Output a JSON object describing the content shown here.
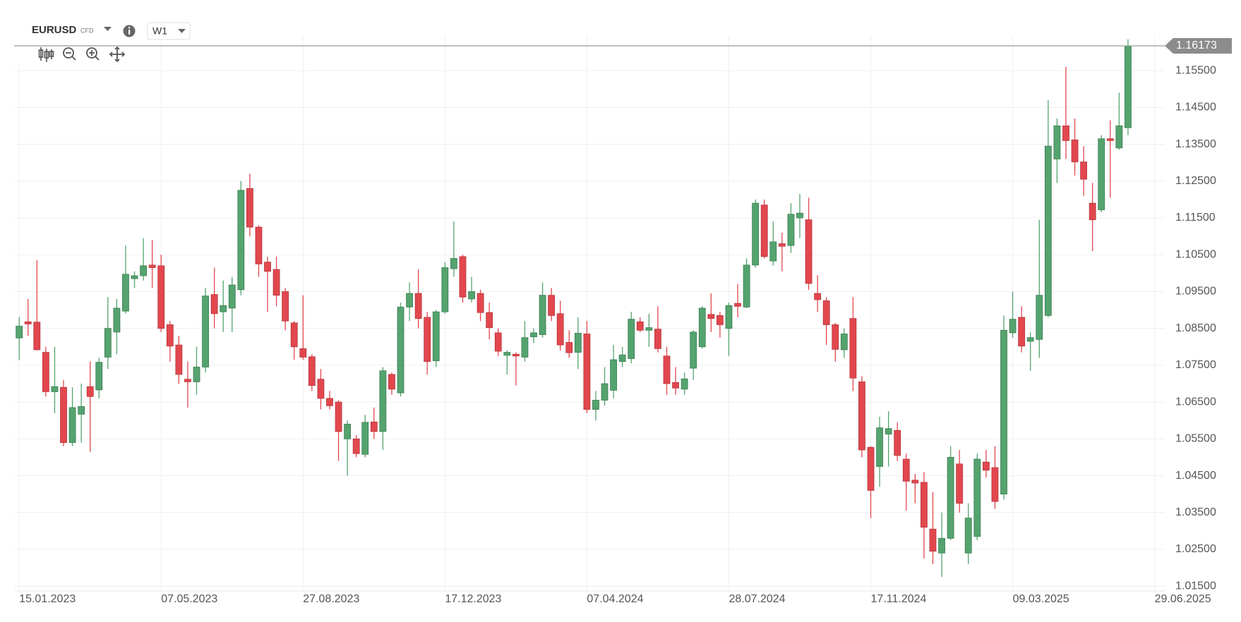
{
  "chart_data": {
    "type": "candlestick",
    "symbol": "EURUSD",
    "instrument_type": "CFD",
    "timeframe": "W1",
    "up_color": "#55a36f",
    "down_color": "#e2474e",
    "grid": true,
    "x": [
      "2023-01-15",
      "2023-01-22",
      "2023-01-29",
      "2023-02-05",
      "2023-02-12",
      "2023-02-19",
      "2023-02-26",
      "2023-03-05",
      "2023-03-12",
      "2023-03-19",
      "2023-03-26",
      "2023-04-02",
      "2023-04-09",
      "2023-04-16",
      "2023-04-23",
      "2023-04-30",
      "2023-05-07",
      "2023-05-14",
      "2023-05-21",
      "2023-05-28",
      "2023-06-04",
      "2023-06-11",
      "2023-06-18",
      "2023-06-25",
      "2023-07-02",
      "2023-07-09",
      "2023-07-16",
      "2023-07-23",
      "2023-07-30",
      "2023-08-06",
      "2023-08-13",
      "2023-08-20",
      "2023-08-27",
      "2023-09-03",
      "2023-09-10",
      "2023-09-17",
      "2023-09-24",
      "2023-10-01",
      "2023-10-08",
      "2023-10-15",
      "2023-10-22",
      "2023-10-29",
      "2023-11-05",
      "2023-11-12",
      "2023-11-19",
      "2023-11-26",
      "2023-12-03",
      "2023-12-10",
      "2023-12-17",
      "2023-12-24",
      "2023-12-31",
      "2024-01-07",
      "2024-01-14",
      "2024-01-21",
      "2024-01-28",
      "2024-02-04",
      "2024-02-11",
      "2024-02-18",
      "2024-02-25",
      "2024-03-03",
      "2024-03-10",
      "2024-03-17",
      "2024-03-24",
      "2024-03-31",
      "2024-04-07",
      "2024-04-14",
      "2024-04-21",
      "2024-04-28",
      "2024-05-05",
      "2024-05-12",
      "2024-05-19",
      "2024-05-26",
      "2024-06-02",
      "2024-06-09",
      "2024-06-16",
      "2024-06-23",
      "2024-06-30",
      "2024-07-07",
      "2024-07-14",
      "2024-07-21",
      "2024-07-28",
      "2024-08-04",
      "2024-08-11",
      "2024-08-18",
      "2024-08-25",
      "2024-09-01",
      "2024-09-08",
      "2024-09-15",
      "2024-09-22",
      "2024-09-29",
      "2024-10-06",
      "2024-10-13",
      "2024-10-20",
      "2024-10-27",
      "2024-11-03",
      "2024-11-10",
      "2024-11-17",
      "2024-11-24",
      "2024-12-01",
      "2024-12-08",
      "2024-12-15",
      "2024-12-22",
      "2024-12-29",
      "2025-01-05",
      "2025-01-12",
      "2025-01-19",
      "2025-01-26",
      "2025-02-02",
      "2025-02-09",
      "2025-02-16",
      "2025-02-23",
      "2025-03-02",
      "2025-03-09",
      "2025-03-16",
      "2025-03-23",
      "2025-03-30",
      "2025-04-06",
      "2025-04-13",
      "2025-04-20",
      "2025-04-27",
      "2025-05-04",
      "2025-05-11",
      "2025-05-18",
      "2025-05-25",
      "2025-06-01",
      "2025-06-08"
    ],
    "open": [
      1.0824,
      1.0868,
      1.0867,
      1.0785,
      1.0678,
      1.069,
      1.054,
      1.0617,
      1.0692,
      1.0683,
      1.0772,
      1.084,
      1.0897,
      1.0985,
      1.0993,
      1.1022,
      1.102,
      1.086,
      1.0805,
      1.0712,
      1.0705,
      1.0745,
      1.0942,
      1.0895,
      1.0905,
      1.0955,
      1.123,
      1.1125,
      1.103,
      1.101,
      1.095,
      1.0865,
      1.0795,
      1.0773,
      1.0712,
      1.066,
      1.065,
      1.055,
      1.055,
      1.0508,
      1.0596,
      1.057,
      1.0725,
      1.0675,
      1.0908,
      1.0945,
      1.088,
      1.0762,
      1.0895,
      1.1012,
      1.1045,
      1.093,
      1.0945,
      1.0893,
      1.0838,
      1.0777,
      1.078,
      1.0772,
      1.0827,
      1.0833,
      1.094,
      1.089,
      1.0812,
      1.0785,
      1.0835,
      1.063,
      1.0655,
      1.0682,
      1.076,
      1.0768,
      1.0868,
      1.0845,
      1.0848,
      1.0775,
      1.0703,
      1.0685,
      1.0742,
      1.08,
      1.0888,
      1.0885,
      1.085,
      1.0918,
      1.0908,
      1.1022,
      1.1185,
      1.1033,
      1.108,
      1.1075,
      1.115,
      1.1145,
      1.0945,
      1.0925,
      1.086,
      1.0792,
      1.0877,
      1.0705,
      1.0527,
      1.0475,
      1.0563,
      1.0573,
      1.0495,
      1.0438,
      1.0432,
      1.0305,
      1.024,
      1.028,
      1.0482,
      1.024,
      1.0285,
      1.0487,
      1.0472,
      1.04,
      1.0838,
      1.088,
      1.0815,
      1.082,
      1.0885,
      1.131,
      1.14,
      1.1362,
      1.1302,
      1.119,
      1.1172,
      1.1365,
      1.134,
      1.1395
    ],
    "high": [
      1.0881,
      1.093,
      1.1035,
      1.08,
      1.08,
      1.071,
      1.069,
      1.07,
      1.076,
      1.077,
      1.0935,
      1.093,
      1.1075,
      1.1005,
      1.1095,
      1.109,
      1.105,
      1.087,
      1.083,
      1.076,
      1.08,
      1.096,
      1.1015,
      1.098,
      1.099,
      1.125,
      1.127,
      1.113,
      1.1045,
      1.1045,
      1.096,
      1.087,
      1.094,
      1.078,
      1.074,
      1.068,
      1.0655,
      1.06,
      1.056,
      1.0615,
      1.0635,
      1.0745,
      1.073,
      1.092,
      1.0975,
      1.101,
      1.0895,
      1.09,
      1.103,
      1.114,
      1.105,
      1.099,
      1.0955,
      1.092,
      1.085,
      1.079,
      1.0785,
      1.087,
      1.085,
      1.0975,
      1.096,
      1.0925,
      1.0845,
      1.088,
      1.087,
      1.068,
      1.0745,
      1.0805,
      1.08,
      1.0895,
      1.088,
      1.089,
      1.091,
      1.08,
      1.0745,
      1.073,
      1.0845,
      1.091,
      1.0945,
      1.0895,
      1.092,
      1.097,
      1.104,
      1.12,
      1.12,
      1.114,
      1.111,
      1.119,
      1.1215,
      1.1205,
      1.0995,
      1.0935,
      1.0865,
      1.085,
      1.0935,
      1.072,
      1.053,
      1.061,
      1.0625,
      1.0595,
      1.051,
      1.0455,
      1.046,
      1.0405,
      1.035,
      1.053,
      1.052,
      1.0375,
      1.051,
      1.052,
      1.053,
      1.0885,
      1.095,
      1.091,
      1.084,
      1.1145,
      1.147,
      1.142,
      1.156,
      1.142,
      1.1345,
      1.1245,
      1.1375,
      1.1415,
      1.149,
      1.1635
    ],
    "low": [
      1.0764,
      1.083,
      1.079,
      1.0665,
      1.062,
      1.053,
      1.053,
      1.054,
      1.0515,
      1.066,
      1.074,
      1.078,
      1.089,
      1.096,
      1.098,
      1.096,
      1.084,
      1.076,
      1.07,
      1.0635,
      1.067,
      1.073,
      1.085,
      1.084,
      1.084,
      1.094,
      1.11,
      1.099,
      1.0895,
      1.091,
      1.0845,
      1.0765,
      1.0765,
      1.068,
      1.063,
      1.063,
      1.049,
      1.045,
      1.05,
      1.05,
      1.055,
      1.052,
      1.067,
      1.0665,
      1.087,
      1.085,
      1.0725,
      1.0745,
      1.089,
      1.099,
      1.092,
      1.092,
      1.087,
      1.082,
      1.0775,
      1.0725,
      1.0695,
      1.076,
      1.081,
      1.0825,
      1.087,
      1.079,
      1.077,
      1.074,
      1.062,
      1.06,
      1.064,
      1.066,
      1.0745,
      1.0755,
      1.084,
      1.08,
      1.0785,
      1.067,
      1.067,
      1.067,
      1.071,
      1.0795,
      1.084,
      1.0825,
      1.0775,
      1.088,
      1.0905,
      1.1015,
      1.104,
      1.102,
      1.1005,
      1.1055,
      1.1095,
      1.0955,
      1.0895,
      1.0805,
      1.076,
      1.077,
      1.068,
      1.05,
      1.0335,
      1.042,
      1.0475,
      1.049,
      1.0355,
      1.0375,
      1.0225,
      1.021,
      1.0175,
      1.0275,
      1.035,
      1.021,
      1.0275,
      1.0445,
      1.036,
      1.0385,
      1.0825,
      1.0785,
      1.0735,
      1.077,
      1.088,
      1.1245,
      1.131,
      1.1265,
      1.121,
      1.106,
      1.1165,
      1.1205,
      1.1335,
      1.1375
    ],
    "close": [
      1.0856,
      1.0862,
      1.0792,
      1.0678,
      1.0692,
      1.054,
      1.0635,
      1.0638,
      1.0665,
      1.0758,
      1.085,
      1.0905,
      1.0997,
      1.0993,
      1.102,
      1.1015,
      1.085,
      1.0802,
      1.0725,
      1.0705,
      1.0745,
      1.0938,
      1.089,
      1.0912,
      1.0968,
      1.1225,
      1.1125,
      1.1025,
      1.1005,
      1.094,
      1.087,
      1.08,
      1.0772,
      1.0695,
      1.066,
      1.064,
      1.057,
      1.059,
      1.051,
      1.0595,
      1.057,
      1.0735,
      1.0685,
      1.0908,
      1.0945,
      1.0877,
      1.076,
      1.0895,
      1.1015,
      1.104,
      1.0935,
      1.095,
      1.0893,
      1.0852,
      1.0788,
      1.0785,
      1.0775,
      1.0825,
      1.0838,
      1.094,
      1.0885,
      1.0805,
      1.0784,
      1.0837,
      1.063,
      1.0655,
      1.07,
      1.0765,
      1.0778,
      1.0875,
      1.0845,
      1.0852,
      1.0795,
      1.07,
      1.0688,
      1.0713,
      1.084,
      1.0905,
      1.0877,
      1.086,
      1.0912,
      1.091,
      1.1022,
      1.119,
      1.1045,
      1.1085,
      1.1073,
      1.116,
      1.1163,
      1.0972,
      1.0928,
      1.086,
      1.0793,
      1.0835,
      1.0715,
      1.052,
      1.041,
      1.058,
      1.0578,
      1.0505,
      1.0435,
      1.043,
      1.031,
      1.0245,
      1.028,
      1.05,
      1.0375,
      1.0335,
      1.0495,
      1.0465,
      1.038,
      1.0845,
      1.0875,
      1.0802,
      1.0825,
      1.094,
      1.1345,
      1.14,
      1.136,
      1.1302,
      1.1255,
      1.1145,
      1.1365,
      1.136,
      1.14,
      1.16173
    ],
    "xlim": [
      "2023-01-11",
      "2025-07-07"
    ],
    "xticks": [
      {
        "value": "2023-01-15",
        "label": "15.01.2023"
      },
      {
        "value": "2023-05-07",
        "label": "07.05.2023"
      },
      {
        "value": "2023-08-27",
        "label": "27.08.2023"
      },
      {
        "value": "2023-12-17",
        "label": "17.12.2023"
      },
      {
        "value": "2024-04-07",
        "label": "07.04.2024"
      },
      {
        "value": "2024-07-28",
        "label": "28.07.2024"
      },
      {
        "value": "2024-11-17",
        "label": "17.11.2024"
      },
      {
        "value": "2025-03-09",
        "label": "09.03.2025"
      },
      {
        "value": "2025-06-29",
        "label": "29.06.2025"
      }
    ],
    "ylim": [
      1.0137,
      1.1646
    ],
    "yticks": [
      {
        "value": 1.015,
        "label": "1.01500"
      },
      {
        "value": 1.025,
        "label": "1.02500"
      },
      {
        "value": 1.035,
        "label": "1.03500"
      },
      {
        "value": 1.045,
        "label": "1.04500"
      },
      {
        "value": 1.055,
        "label": "1.05500"
      },
      {
        "value": 1.065,
        "label": "1.06500"
      },
      {
        "value": 1.075,
        "label": "1.07500"
      },
      {
        "value": 1.085,
        "label": "1.08500"
      },
      {
        "value": 1.095,
        "label": "1.09500"
      },
      {
        "value": 1.105,
        "label": "1.10500"
      },
      {
        "value": 1.115,
        "label": "1.11500"
      },
      {
        "value": 1.125,
        "label": "1.12500"
      },
      {
        "value": 1.135,
        "label": "1.13500"
      },
      {
        "value": 1.145,
        "label": "1.14500"
      },
      {
        "value": 1.155,
        "label": "1.15500"
      }
    ]
  }
}
